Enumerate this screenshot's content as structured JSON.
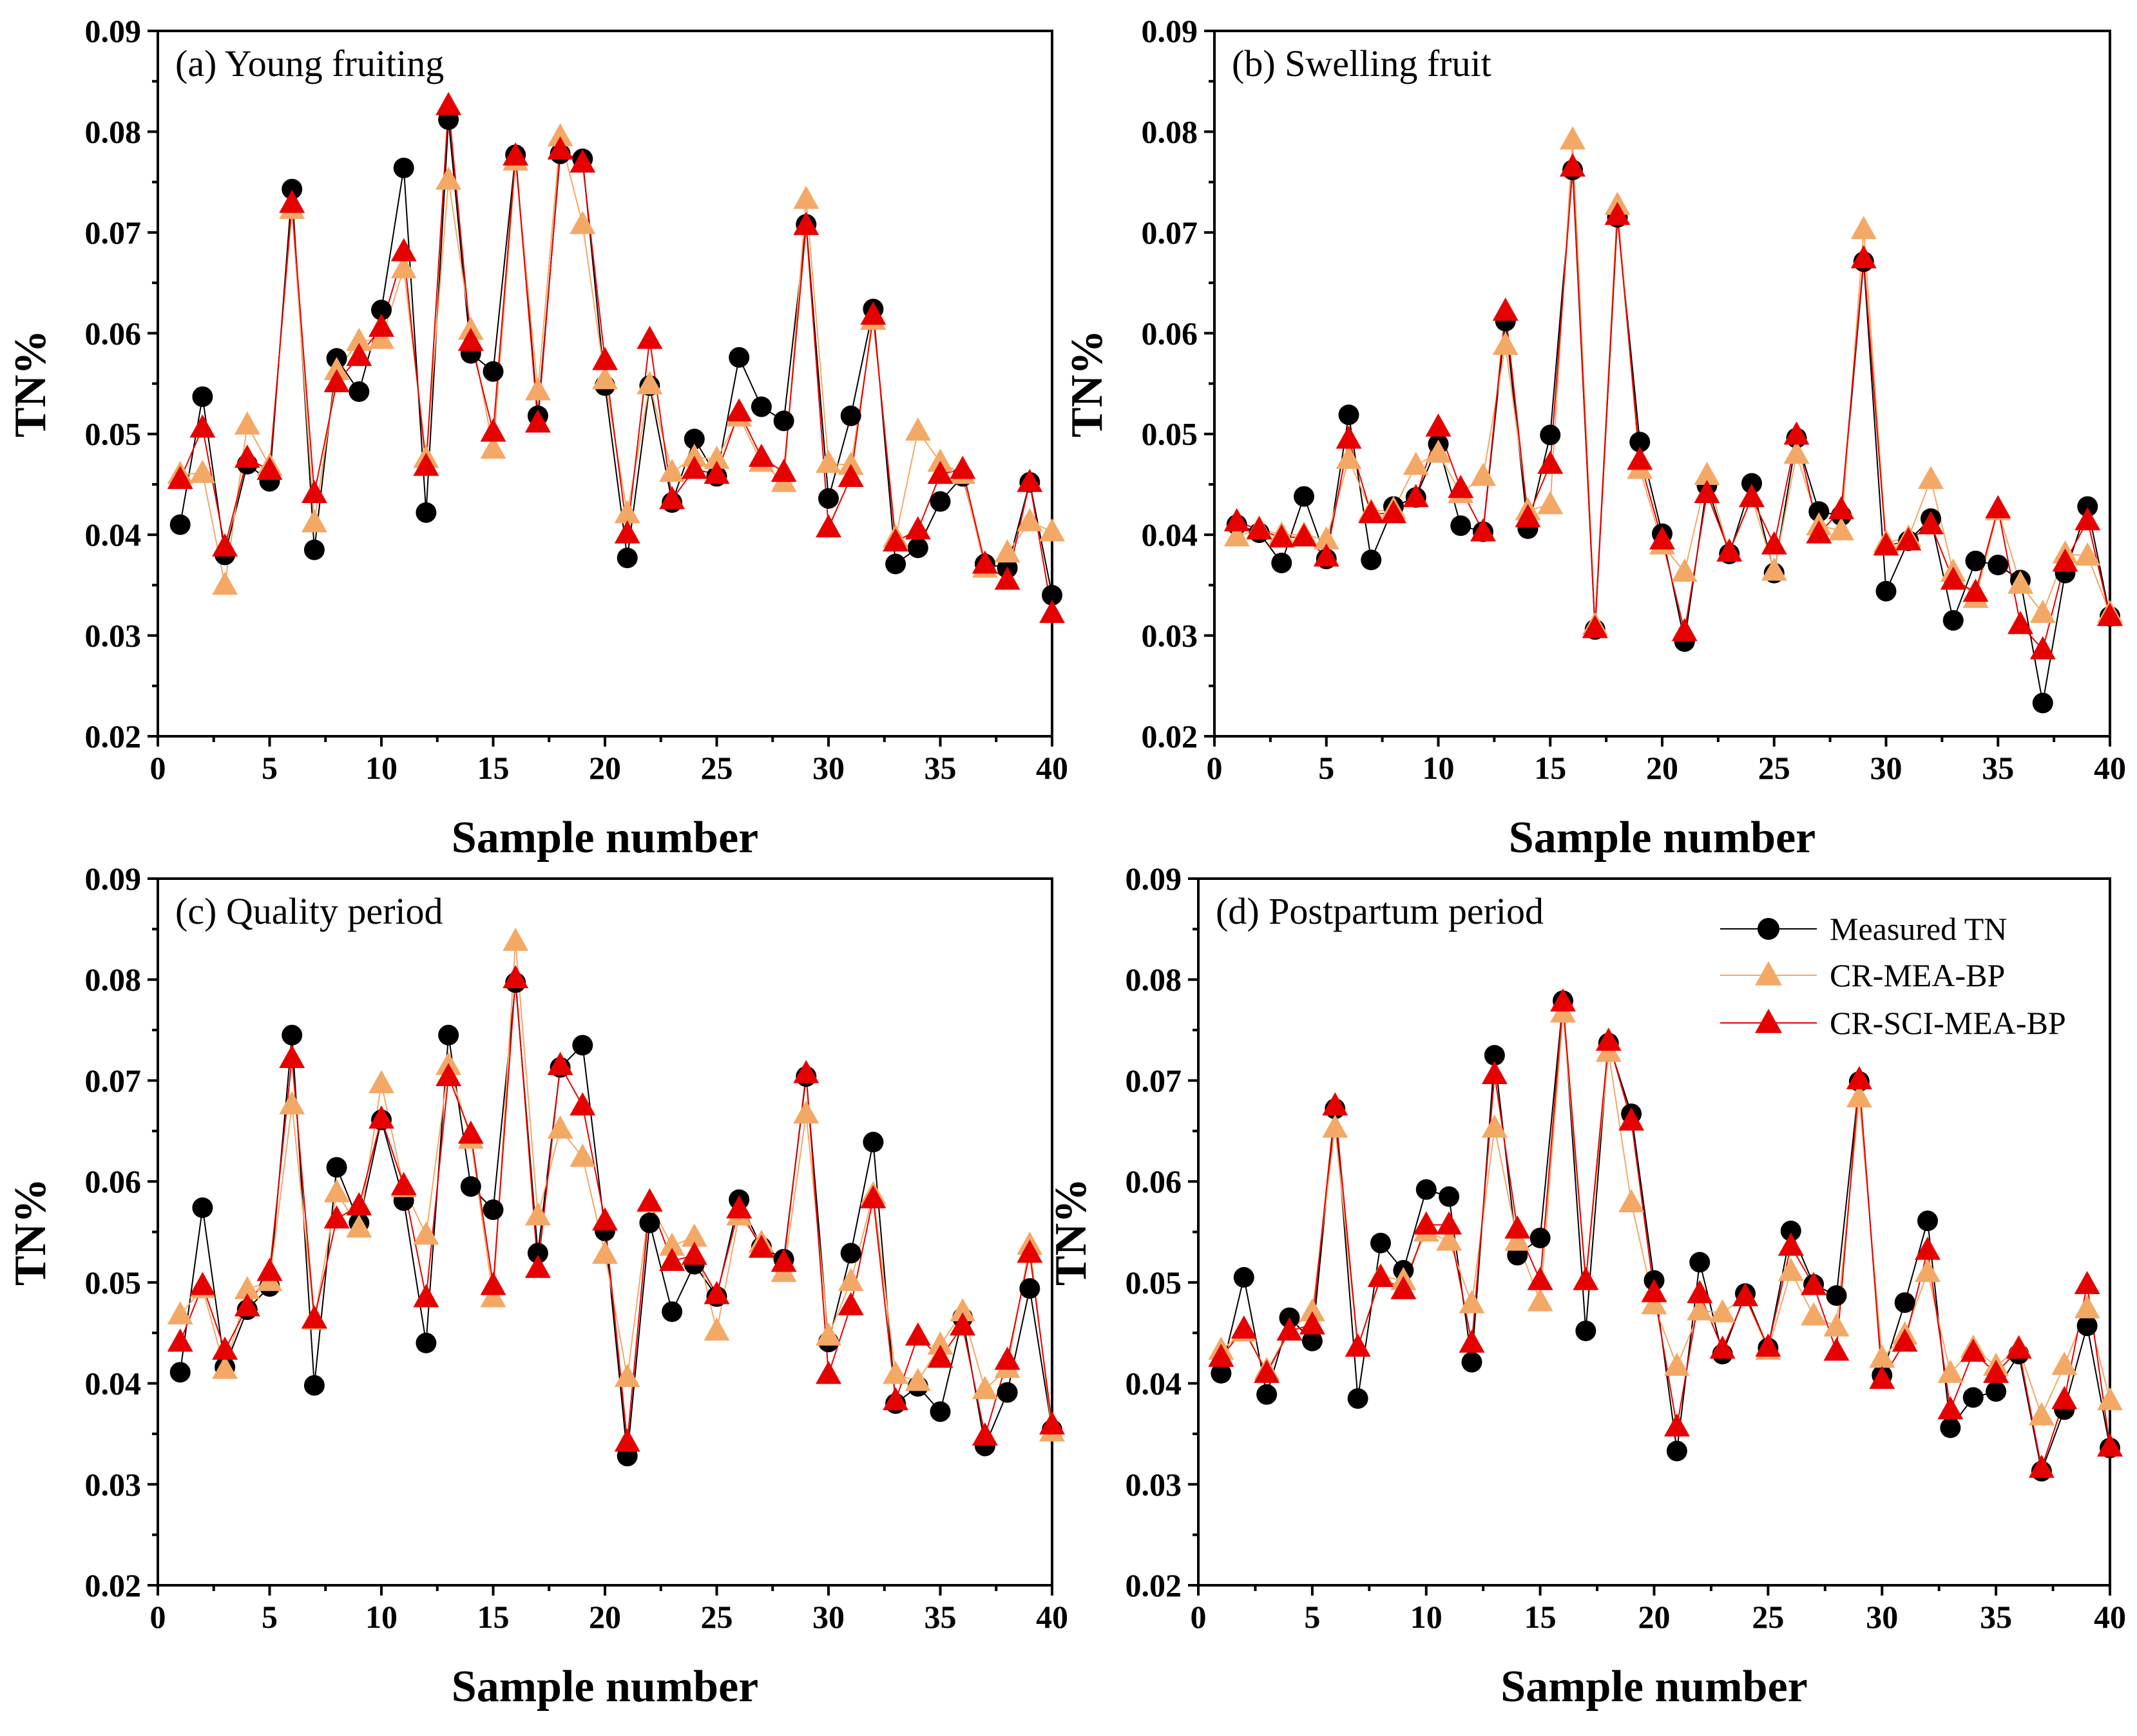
{
  "chart_data": [
    {
      "type": "line",
      "title": "(a) Young fruiting",
      "xlabel": "Sample number",
      "ylabel": "TN%",
      "xlim": [
        0,
        40
      ],
      "ylim": [
        0.02,
        0.09
      ],
      "xticks": [
        "0",
        "5",
        "10",
        "15",
        "20",
        "25",
        "30",
        "35",
        "40"
      ],
      "yticks": [
        "0.02",
        "0.03",
        "0.04",
        "0.05",
        "0.06",
        "0.07",
        "0.08",
        "0.09"
      ],
      "x": [
        1,
        2,
        3,
        4,
        5,
        6,
        7,
        8,
        9,
        10,
        11,
        12,
        13,
        14,
        15,
        16,
        17,
        18,
        19,
        20,
        21,
        22,
        23,
        24,
        25,
        26,
        27,
        28,
        29,
        30,
        31,
        32,
        33,
        34,
        35,
        36,
        37,
        38,
        39,
        40
      ],
      "series": [
        {
          "name": "Measured TN",
          "values": [
            0.041,
            0.0537,
            0.038,
            0.047,
            0.0453,
            0.0743,
            0.0385,
            0.0575,
            0.0542,
            0.0623,
            0.0764,
            0.0422,
            0.0812,
            0.058,
            0.0562,
            0.0777,
            0.0518,
            0.0778,
            0.0773,
            0.0548,
            0.0377,
            0.0548,
            0.0432,
            0.0495,
            0.0458,
            0.0576,
            0.0527,
            0.0513,
            0.0708,
            0.0436,
            0.0518,
            0.0624,
            0.0371,
            0.0387,
            0.0433,
            0.0458,
            0.0371,
            0.0367,
            0.0452,
            0.034
          ]
        },
        {
          "name": "CR-MEA-BP",
          "values": [
            0.046,
            0.0461,
            0.035,
            0.0509,
            0.0468,
            0.0723,
            0.0412,
            0.0563,
            0.0592,
            0.0594,
            0.0664,
            0.0476,
            0.0752,
            0.0603,
            0.0485,
            0.0771,
            0.0543,
            0.0795,
            0.0708,
            0.0554,
            0.0421,
            0.0549,
            0.0462,
            0.0477,
            0.0475,
            0.0517,
            0.0472,
            0.0452,
            0.0733,
            0.0471,
            0.0469,
            0.0613,
            0.0397,
            0.0503,
            0.0472,
            0.046,
            0.0367,
            0.0382,
            0.0413,
            0.0403
          ]
        },
        {
          "name": "CR-SCI-MEA-BP",
          "values": [
            0.0455,
            0.0506,
            0.0388,
            0.0476,
            0.0464,
            0.0729,
            0.0441,
            0.0551,
            0.0577,
            0.0606,
            0.0681,
            0.0468,
            0.0826,
            0.0592,
            0.0502,
            0.0776,
            0.0511,
            0.0782,
            0.0769,
            0.0573,
            0.0401,
            0.0594,
            0.0435,
            0.0465,
            0.046,
            0.0522,
            0.0477,
            0.0462,
            0.0707,
            0.0407,
            0.0457,
            0.0618,
            0.0393,
            0.0405,
            0.046,
            0.0465,
            0.0371,
            0.0355,
            0.0452,
            0.0322
          ]
        }
      ]
    },
    {
      "type": "line",
      "title": "(b) Swelling fruit",
      "xlabel": "Sample number",
      "ylabel": "TN%",
      "xlim": [
        0,
        40
      ],
      "ylim": [
        0.02,
        0.09
      ],
      "xticks": [
        "0",
        "5",
        "10",
        "15",
        "20",
        "25",
        "30",
        "35",
        "40"
      ],
      "yticks": [
        "0.02",
        "0.03",
        "0.04",
        "0.05",
        "0.06",
        "0.07",
        "0.08",
        "0.09"
      ],
      "x": [
        1,
        2,
        3,
        4,
        5,
        6,
        7,
        8,
        9,
        10,
        11,
        12,
        13,
        14,
        15,
        16,
        17,
        18,
        19,
        20,
        21,
        22,
        23,
        24,
        25,
        26,
        27,
        28,
        29,
        30,
        31,
        32,
        33,
        34,
        35,
        36,
        37,
        38,
        39,
        40
      ],
      "series": [
        {
          "name": "Measured TN",
          "values": [
            0.041,
            0.0402,
            0.0372,
            0.0438,
            0.0376,
            0.0519,
            0.0375,
            0.0428,
            0.0437,
            0.049,
            0.0409,
            0.0403,
            0.0612,
            0.0406,
            0.0499,
            0.0762,
            0.0306,
            0.0715,
            0.0492,
            0.0401,
            0.0294,
            0.0449,
            0.0381,
            0.0451,
            0.0362,
            0.0496,
            0.0423,
            0.0419,
            0.0671,
            0.0344,
            0.0394,
            0.0416,
            0.0315,
            0.0374,
            0.037,
            0.0355,
            0.0233,
            0.0362,
            0.0428,
            0.0319
          ]
        },
        {
          "name": "CR-MEA-BP",
          "values": [
            0.0398,
            0.0406,
            0.04,
            0.04,
            0.0395,
            0.0475,
            0.0423,
            0.0425,
            0.0469,
            0.0481,
            0.0441,
            0.0458,
            0.0588,
            0.0424,
            0.043,
            0.0792,
            0.031,
            0.0727,
            0.0465,
            0.039,
            0.0363,
            0.0459,
            0.0383,
            0.0437,
            0.0364,
            0.048,
            0.0409,
            0.0404,
            0.0703,
            0.0392,
            0.0397,
            0.0455,
            0.0363,
            0.0337,
            0.0424,
            0.0351,
            0.0322,
            0.0381,
            0.0379,
            0.0322
          ]
        },
        {
          "name": "CR-SCI-MEA-BP",
          "values": [
            0.0413,
            0.0405,
            0.0397,
            0.0398,
            0.0378,
            0.0495,
            0.0421,
            0.0421,
            0.0437,
            0.0507,
            0.0446,
            0.0403,
            0.0622,
            0.0417,
            0.047,
            0.0765,
            0.0307,
            0.0717,
            0.0474,
            0.0395,
            0.0304,
            0.0441,
            0.0383,
            0.0437,
            0.039,
            0.0499,
            0.0401,
            0.0425,
            0.0674,
            0.0389,
            0.0394,
            0.041,
            0.0355,
            0.0343,
            0.0426,
            0.0311,
            0.0286,
            0.0373,
            0.0414,
            0.0319
          ]
        }
      ]
    },
    {
      "type": "line",
      "title": "(c) Quality period",
      "xlabel": "Sample number",
      "ylabel": "TN%",
      "xlim": [
        0,
        40
      ],
      "ylim": [
        0.02,
        0.09
      ],
      "xticks": [
        "0",
        "5",
        "10",
        "15",
        "20",
        "25",
        "30",
        "35",
        "40"
      ],
      "yticks": [
        "0.02",
        "0.03",
        "0.04",
        "0.05",
        "0.06",
        "0.07",
        "0.08",
        "0.09"
      ],
      "x": [
        1,
        2,
        3,
        4,
        5,
        6,
        7,
        8,
        9,
        10,
        11,
        12,
        13,
        14,
        15,
        16,
        17,
        18,
        19,
        20,
        21,
        22,
        23,
        24,
        25,
        26,
        27,
        28,
        29,
        30,
        31,
        32,
        33,
        34,
        35,
        36,
        37,
        38,
        39,
        40
      ],
      "series": [
        {
          "name": "Measured TN",
          "values": [
            0.0411,
            0.0574,
            0.0416,
            0.0473,
            0.0496,
            0.0745,
            0.0398,
            0.0614,
            0.0559,
            0.0661,
            0.0581,
            0.044,
            0.0745,
            0.0595,
            0.0572,
            0.0797,
            0.0529,
            0.0713,
            0.0735,
            0.0551,
            0.0328,
            0.0559,
            0.0471,
            0.0518,
            0.0486,
            0.0582,
            0.0535,
            0.0523,
            0.0704,
            0.0441,
            0.0529,
            0.0639,
            0.038,
            0.0397,
            0.0372,
            0.0465,
            0.0338,
            0.0391,
            0.0494,
            0.0354
          ]
        },
        {
          "name": "CR-MEA-BP",
          "values": [
            0.0468,
            0.0494,
            0.0414,
            0.0493,
            0.0501,
            0.0676,
            0.0463,
            0.0589,
            0.0554,
            0.0697,
            0.0594,
            0.0547,
            0.0715,
            0.0642,
            0.0485,
            0.0838,
            0.0566,
            0.0652,
            0.0624,
            0.0528,
            0.0406,
            0.0579,
            0.0536,
            0.0545,
            0.0452,
            0.0566,
            0.0539,
            0.051,
            0.0667,
            0.0447,
            0.0501,
            0.0587,
            0.0409,
            0.0402,
            0.0438,
            0.0471,
            0.0394,
            0.0415,
            0.0537,
            0.0352
          ]
        },
        {
          "name": "CR-SCI-MEA-BP",
          "values": [
            0.0441,
            0.0497,
            0.0433,
            0.0476,
            0.0511,
            0.0722,
            0.0464,
            0.0563,
            0.0576,
            0.0662,
            0.0596,
            0.0485,
            0.0704,
            0.0647,
            0.0497,
            0.0801,
            0.0514,
            0.0715,
            0.0675,
            0.0561,
            0.0342,
            0.058,
            0.0521,
            0.0527,
            0.0488,
            0.0573,
            0.0534,
            0.052,
            0.0707,
            0.0409,
            0.0477,
            0.0583,
            0.0383,
            0.0447,
            0.0425,
            0.0457,
            0.0348,
            0.0423,
            0.0529,
            0.0359
          ]
        }
      ]
    },
    {
      "type": "line",
      "title": "(d) Postpartum period",
      "xlabel": "Sample number",
      "ylabel": "TN%",
      "xlim": [
        0,
        40
      ],
      "ylim": [
        0.02,
        0.09
      ],
      "xticks": [
        "0",
        "5",
        "10",
        "15",
        "20",
        "25",
        "30",
        "35",
        "40"
      ],
      "yticks": [
        "0.02",
        "0.03",
        "0.04",
        "0.05",
        "0.06",
        "0.07",
        "0.08",
        "0.09"
      ],
      "legend": {
        "position": "top-right",
        "entries": [
          "Measured TN",
          "CR-MEA-BP",
          "CR-SCI-MEA-BP"
        ]
      },
      "x": [
        1,
        2,
        3,
        4,
        5,
        6,
        7,
        8,
        9,
        10,
        11,
        12,
        13,
        14,
        15,
        16,
        17,
        18,
        19,
        20,
        21,
        22,
        23,
        24,
        25,
        26,
        27,
        28,
        29,
        30,
        31,
        32,
        33,
        34,
        35,
        36,
        37,
        38,
        39,
        40
      ],
      "series": [
        {
          "name": "Measured TN",
          "values": [
            0.041,
            0.0505,
            0.0389,
            0.0465,
            0.0442,
            0.0672,
            0.0385,
            0.0539,
            0.0512,
            0.0592,
            0.0585,
            0.0421,
            0.0725,
            0.0527,
            0.0544,
            0.0779,
            0.0452,
            0.0737,
            0.0667,
            0.0502,
            0.0333,
            0.052,
            0.0429,
            0.0489,
            0.0435,
            0.0551,
            0.0498,
            0.0487,
            0.0699,
            0.0408,
            0.048,
            0.0561,
            0.0356,
            0.0386,
            0.0392,
            0.0429,
            0.0313,
            0.0374,
            0.0457,
            0.0336
          ]
        },
        {
          "name": "CR-MEA-BP",
          "values": [
            0.0433,
            0.0451,
            0.0413,
            0.0452,
            0.0471,
            0.0653,
            0.0436,
            0.0506,
            0.0502,
            0.055,
            0.0541,
            0.0479,
            0.0653,
            0.0541,
            0.0481,
            0.0767,
            0.0502,
            0.0728,
            0.0579,
            0.0478,
            0.0417,
            0.0472,
            0.047,
            0.0486,
            0.0433,
            0.0511,
            0.0467,
            0.0456,
            0.0683,
            0.0425,
            0.0448,
            0.051,
            0.041,
            0.0435,
            0.0417,
            0.0435,
            0.0368,
            0.0418,
            0.0474,
            0.0383
          ]
        },
        {
          "name": "CR-SCI-MEA-BP",
          "values": [
            0.0426,
            0.0454,
            0.041,
            0.0452,
            0.0458,
            0.0675,
            0.0436,
            0.0505,
            0.0493,
            0.0557,
            0.0557,
            0.044,
            0.0706,
            0.0553,
            0.0502,
            0.0778,
            0.0502,
            0.0739,
            0.066,
            0.049,
            0.0357,
            0.0489,
            0.0434,
            0.0486,
            0.0436,
            0.0536,
            0.0497,
            0.0432,
            0.0701,
            0.0404,
            0.0441,
            0.0532,
            0.0374,
            0.0431,
            0.041,
            0.0434,
            0.0316,
            0.0384,
            0.0498,
            0.0337
          ]
        }
      ]
    }
  ],
  "styles": {
    "measured_color": "#000000",
    "mea_color": "#f4a866",
    "sci_color": "#e60000"
  }
}
